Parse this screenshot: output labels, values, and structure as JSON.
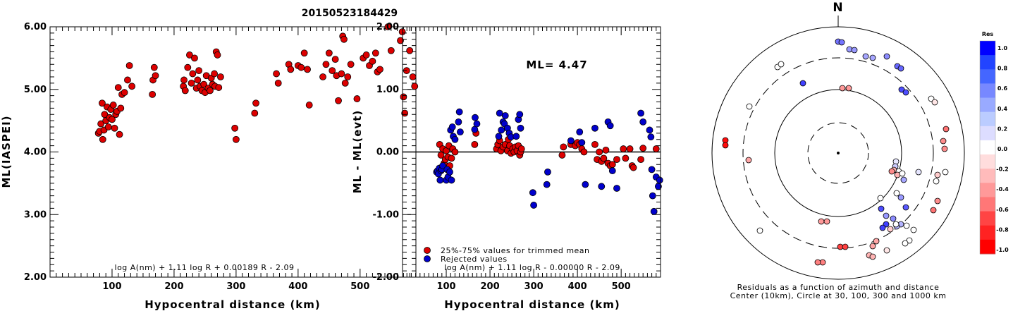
{
  "title": "20150523184429",
  "chart_data": [
    {
      "type": "scatter",
      "name": "ml-vs-distance",
      "xlabel": "Hypocentral distance (km)",
      "ylabel": "ML(IASPEI)",
      "xlim": [
        0,
        590
      ],
      "ylim": [
        2.0,
        6.0
      ],
      "xticks": [
        "100",
        "200",
        "300",
        "400",
        "500"
      ],
      "yticks": [
        "2.00",
        "3.00",
        "4.00",
        "5.00",
        "6.00"
      ],
      "formula": "log A(nm) + 1.11 log R + 0.00189 R - 2.09",
      "points": [
        [
          78,
          4.3
        ],
        [
          80,
          4.33
        ],
        [
          82,
          4.45
        ],
        [
          84,
          4.78
        ],
        [
          85,
          4.2
        ],
        [
          87,
          4.35
        ],
        [
          88,
          4.6
        ],
        [
          90,
          4.5
        ],
        [
          92,
          4.72
        ],
        [
          94,
          4.4
        ],
        [
          96,
          4.55
        ],
        [
          98,
          4.68
        ],
        [
          100,
          4.52
        ],
        [
          102,
          4.75
        ],
        [
          104,
          4.38
        ],
        [
          106,
          4.6
        ],
        [
          108,
          4.65
        ],
        [
          110,
          5.03
        ],
        [
          112,
          4.28
        ],
        [
          114,
          4.7
        ],
        [
          116,
          4.92
        ],
        [
          120,
          4.95
        ],
        [
          125,
          5.15
        ],
        [
          128,
          5.38
        ],
        [
          132,
          5.05
        ],
        [
          165,
          4.92
        ],
        [
          166,
          5.15
        ],
        [
          168,
          5.35
        ],
        [
          170,
          5.22
        ],
        [
          215,
          5.05
        ],
        [
          216,
          5.15
        ],
        [
          218,
          4.98
        ],
        [
          222,
          5.35
        ],
        [
          225,
          5.55
        ],
        [
          228,
          5.1
        ],
        [
          230,
          5.25
        ],
        [
          233,
          5.5
        ],
        [
          236,
          5.02
        ],
        [
          238,
          5.15
        ],
        [
          240,
          5.3
        ],
        [
          242,
          5.05
        ],
        [
          245,
          4.98
        ],
        [
          248,
          5.08
        ],
        [
          250,
          4.95
        ],
        [
          252,
          5.22
        ],
        [
          255,
          5.02
        ],
        [
          258,
          4.98
        ],
        [
          260,
          5.18
        ],
        [
          262,
          5.08
        ],
        [
          265,
          5.25
        ],
        [
          266,
          5.05
        ],
        [
          268,
          5.6
        ],
        [
          270,
          5.55
        ],
        [
          272,
          5.03
        ],
        [
          275,
          5.2
        ],
        [
          298,
          4.38
        ],
        [
          300,
          4.2
        ],
        [
          330,
          4.62
        ],
        [
          332,
          4.78
        ],
        [
          365,
          5.25
        ],
        [
          368,
          5.1
        ],
        [
          385,
          5.4
        ],
        [
          388,
          5.32
        ],
        [
          400,
          5.38
        ],
        [
          405,
          5.35
        ],
        [
          410,
          5.58
        ],
        [
          415,
          5.32
        ],
        [
          418,
          4.75
        ],
        [
          440,
          5.2
        ],
        [
          445,
          5.4
        ],
        [
          450,
          5.58
        ],
        [
          455,
          5.3
        ],
        [
          460,
          5.48
        ],
        [
          462,
          5.22
        ],
        [
          465,
          4.82
        ],
        [
          470,
          5.25
        ],
        [
          472,
          5.85
        ],
        [
          474,
          5.8
        ],
        [
          476,
          5.1
        ],
        [
          480,
          5.2
        ],
        [
          485,
          5.4
        ],
        [
          495,
          4.85
        ],
        [
          505,
          5.5
        ],
        [
          510,
          5.55
        ],
        [
          515,
          5.38
        ],
        [
          520,
          5.45
        ],
        [
          525,
          5.58
        ],
        [
          528,
          5.28
        ],
        [
          532,
          5.32
        ],
        [
          545,
          6.0
        ],
        [
          550,
          5.62
        ],
        [
          565,
          5.78
        ],
        [
          568,
          5.92
        ],
        [
          570,
          4.88
        ],
        [
          572,
          4.62
        ],
        [
          575,
          5.3
        ],
        [
          580,
          5.62
        ],
        [
          585,
          5.2
        ],
        [
          588,
          5.05
        ]
      ]
    },
    {
      "type": "scatter",
      "name": "residual-vs-distance",
      "xlabel": "Hypocentral distance (km)",
      "ylabel": "ML - ML(evt)",
      "xlim": [
        0,
        590
      ],
      "ylim": [
        -2.0,
        2.0
      ],
      "xticks": [
        "100",
        "200",
        "300",
        "400",
        "500"
      ],
      "yticks": [
        "-2.00",
        "-1.00",
        "0.00",
        "1.00",
        "2.00"
      ],
      "annotation": "ML= 4.47",
      "legend": [
        "25%-75% values for trimmed mean",
        "Rejected values"
      ],
      "formula": "log A(nm) + 1.11 log R - 0.00000 R - 2.09",
      "series": [
        {
          "name": "25%-75% values for trimmed mean",
          "color": "#dd0000",
          "points": [
            [
              85,
              0.12
            ],
            [
              88,
              -0.05
            ],
            [
              92,
              0.05
            ],
            [
              95,
              -0.18
            ],
            [
              98,
              -0.12
            ],
            [
              100,
              0.02
            ],
            [
              104,
              -0.08
            ],
            [
              106,
              0.1
            ],
            [
              108,
              -0.22
            ],
            [
              112,
              -0.1
            ],
            [
              115,
              0.05
            ],
            [
              120,
              0.0
            ],
            [
              165,
              0.12
            ],
            [
              168,
              0.3
            ],
            [
              215,
              0.05
            ],
            [
              218,
              0.12
            ],
            [
              222,
              0.18
            ],
            [
              225,
              0.02
            ],
            [
              230,
              0.08
            ],
            [
              235,
              0.12
            ],
            [
              240,
              0.02
            ],
            [
              242,
              0.2
            ],
            [
              245,
              0.1
            ],
            [
              248,
              -0.02
            ],
            [
              252,
              0.05
            ],
            [
              255,
              0.0
            ],
            [
              258,
              0.08
            ],
            [
              262,
              0.02
            ],
            [
              265,
              0.1
            ],
            [
              268,
              -0.05
            ],
            [
              270,
              0.0
            ],
            [
              272,
              0.05
            ],
            [
              365,
              -0.05
            ],
            [
              368,
              0.08
            ],
            [
              385,
              0.12
            ],
            [
              395,
              0.1
            ],
            [
              400,
              0.15
            ],
            [
              405,
              0.12
            ],
            [
              410,
              0.05
            ],
            [
              415,
              0.0
            ],
            [
              440,
              0.12
            ],
            [
              445,
              -0.12
            ],
            [
              450,
              0.0
            ],
            [
              455,
              -0.15
            ],
            [
              460,
              -0.1
            ],
            [
              465,
              0.03
            ],
            [
              470,
              -0.18
            ],
            [
              475,
              -0.22
            ],
            [
              480,
              -0.2
            ],
            [
              490,
              -0.12
            ],
            [
              505,
              0.05
            ],
            [
              510,
              -0.1
            ],
            [
              520,
              0.05
            ],
            [
              525,
              -0.22
            ],
            [
              528,
              -0.25
            ],
            [
              545,
              -0.12
            ],
            [
              550,
              0.06
            ],
            [
              580,
              0.05
            ]
          ]
        },
        {
          "name": "Rejected values",
          "color": "#0000cc",
          "points": [
            [
              78,
              -0.32
            ],
            [
              80,
              -0.3
            ],
            [
              82,
              -0.35
            ],
            [
              84,
              -0.26
            ],
            [
              86,
              -0.45
            ],
            [
              88,
              -0.3
            ],
            [
              90,
              -0.28
            ],
            [
              92,
              -0.22
            ],
            [
              100,
              -0.45
            ],
            [
              102,
              -0.28
            ],
            [
              104,
              -0.4
            ],
            [
              108,
              -0.32
            ],
            [
              110,
              0.35
            ],
            [
              112,
              -0.45
            ],
            [
              114,
              0.4
            ],
            [
              116,
              0.25
            ],
            [
              120,
              0.2
            ],
            [
              128,
              0.48
            ],
            [
              130,
              0.64
            ],
            [
              132,
              0.32
            ],
            [
              165,
              0.36
            ],
            [
              166,
              0.55
            ],
            [
              170,
              0.45
            ],
            [
              220,
              0.25
            ],
            [
              222,
              0.62
            ],
            [
              226,
              0.35
            ],
            [
              230,
              0.48
            ],
            [
              233,
              0.45
            ],
            [
              235,
              0.58
            ],
            [
              240,
              0.38
            ],
            [
              244,
              0.3
            ],
            [
              248,
              0.24
            ],
            [
              260,
              0.25
            ],
            [
              265,
              0.52
            ],
            [
              268,
              0.6
            ],
            [
              270,
              0.38
            ],
            [
              298,
              -0.65
            ],
            [
              300,
              -0.85
            ],
            [
              330,
              -0.52
            ],
            [
              332,
              -0.32
            ],
            [
              385,
              0.18
            ],
            [
              405,
              0.32
            ],
            [
              410,
              0.15
            ],
            [
              418,
              -0.52
            ],
            [
              440,
              0.38
            ],
            [
              455,
              -0.55
            ],
            [
              470,
              0.48
            ],
            [
              475,
              0.42
            ],
            [
              480,
              -0.3
            ],
            [
              490,
              -0.58
            ],
            [
              545,
              0.62
            ],
            [
              550,
              0.48
            ],
            [
              565,
              0.35
            ],
            [
              568,
              0.24
            ],
            [
              570,
              -0.28
            ],
            [
              572,
              -0.7
            ],
            [
              575,
              -0.95
            ],
            [
              580,
              -0.4
            ],
            [
              585,
              -0.55
            ],
            [
              588,
              -0.45
            ]
          ]
        }
      ]
    },
    {
      "type": "scatter",
      "name": "azimuth-residual-polar",
      "north_label": "N",
      "caption": [
        "Residuals as a function of azimuth and distance",
        "Center (10km), Circle at 30, 100, 300 and 1000 km"
      ],
      "colorbar": {
        "title": "Res",
        "ticks": [
          "1.0",
          "0.8",
          "0.6",
          "0.4",
          "0.2",
          "0.0",
          "-0.2",
          "-0.4",
          "-0.6",
          "-0.8",
          "-1.0"
        ],
        "stops": [
          "#0000ff",
          "#2244ff",
          "#4466ff",
          "#7788ff",
          "#99aaff",
          "#bbccff",
          "#ddddff",
          "#ffffff",
          "#ffdddd",
          "#ffbbbb",
          "#ff9999",
          "#ff7777",
          "#ff4444",
          "#ff2222",
          "#ff0000"
        ]
      },
      "points": [
        [
          1189,
          59,
          0.55
        ],
        [
          1194,
          60,
          0.55
        ],
        [
          1205,
          70,
          0.4
        ],
        [
          1212,
          71,
          0.4
        ],
        [
          1228,
          80,
          0.35
        ],
        [
          1238,
          82,
          0.35
        ],
        [
          1258,
          80,
          0.45
        ],
        [
          1273,
          94,
          0.6
        ],
        [
          1278,
          97,
          0.6
        ],
        [
          1279,
          127,
          0.7
        ],
        [
          1285,
          131,
          0.7
        ],
        [
          1139,
          118,
          0.75
        ],
        [
          1195,
          125,
          -0.4
        ],
        [
          1204,
          125,
          -0.4
        ],
        [
          1103,
          95,
          0.0
        ],
        [
          1108,
          91,
          0.0
        ],
        [
          1063,
          151,
          0.0
        ],
        [
          1321,
          140,
          0.0
        ],
        [
          1326,
          145,
          -0.1
        ],
        [
          1342,
          183,
          -0.55
        ],
        [
          1338,
          200,
          -0.45
        ],
        [
          1340,
          211,
          -0.45
        ],
        [
          1029,
          199,
          -0.95
        ],
        [
          1029,
          206,
          -0.95
        ],
        [
          1062,
          227,
          -0.35
        ],
        [
          1271,
          229,
          0.1
        ],
        [
          1270,
          236,
          0.2
        ],
        [
          1268,
          241,
          -0.3
        ],
        [
          1265,
          243,
          -0.45
        ],
        [
          1275,
          243,
          0.0
        ],
        [
          1273,
          248,
          -0.3
        ],
        [
          1280,
          246,
          0.0
        ],
        [
          1282,
          255,
          0.35
        ],
        [
          1303,
          244,
          0.1
        ],
        [
          1341,
          244,
          0.0
        ],
        [
          1330,
          248,
          -0.2
        ],
        [
          1328,
          257,
          0.0
        ],
        [
          1272,
          274,
          0.0
        ],
        [
          1278,
          280,
          0.4
        ],
        [
          1249,
          281,
          0.0
        ],
        [
          1250,
          296,
          0.7
        ],
        [
          1330,
          285,
          -0.45
        ],
        [
          1324,
          298,
          -0.55
        ],
        [
          1285,
          294,
          0.65
        ],
        [
          1257,
          306,
          0.4
        ],
        [
          1267,
          310,
          0.45
        ],
        [
          1278,
          318,
          0.3
        ],
        [
          1272,
          321,
          0.3
        ],
        [
          1257,
          318,
          0.75
        ],
        [
          1252,
          323,
          0.75
        ],
        [
          1271,
          318,
          0.0
        ],
        [
          1286,
          320,
          0.0
        ],
        [
          1263,
          325,
          -0.2
        ],
        [
          1296,
          326,
          0.0
        ],
        [
          1290,
          341,
          0.0
        ],
        [
          1284,
          345,
          0.0
        ],
        [
          1243,
          342,
          -0.35
        ],
        [
          1238,
          349,
          -0.35
        ],
        [
          1233,
          362,
          -0.3
        ],
        [
          1238,
          364,
          -0.3
        ],
        [
          1258,
          355,
          -0.1
        ],
        [
          1192,
          350,
          -0.75
        ],
        [
          1199,
          350,
          -0.75
        ],
        [
          1167,
          372,
          -0.5
        ],
        [
          1160,
          372,
          -0.5
        ],
        [
          1078,
          327,
          0.0
        ],
        [
          1165,
          314,
          -0.4
        ],
        [
          1173,
          314,
          -0.4
        ]
      ]
    }
  ]
}
